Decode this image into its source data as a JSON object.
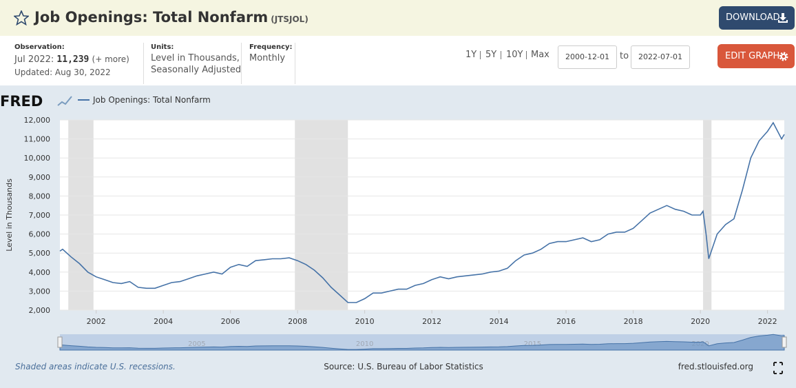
{
  "header": {
    "title": "Job Openings: Total Nonfarm",
    "series_id": "(JTSJOL)",
    "download": "DOWNLOAD"
  },
  "info": {
    "observation_label": "Observation:",
    "observation_date": "Jul 2022:",
    "observation_value": "11,239",
    "more": "(+ more)",
    "updated": "Updated: Aug 30, 2022",
    "units_label": "Units:",
    "units_lines": [
      "Level in Thousands,",
      "Seasonally Adjusted"
    ],
    "frequency_label": "Frequency:",
    "frequency": "Monthly"
  },
  "controls": {
    "ranges": [
      "1Y",
      "5Y",
      "10Y",
      "Max"
    ],
    "start_date": "2000-12-01",
    "to": "to",
    "end_date": "2022-07-01",
    "edit": "EDIT GRAPH"
  },
  "chart_data": {
    "type": "line",
    "logo": "FRED",
    "ylabel": "Level in Thousands",
    "x": [
      2000.92,
      2001.0,
      2001.25,
      2001.5,
      2001.75,
      2002.0,
      2002.25,
      2002.5,
      2002.75,
      2003.0,
      2003.25,
      2003.5,
      2003.75,
      2004.0,
      2004.25,
      2004.5,
      2004.75,
      2005.0,
      2005.25,
      2005.5,
      2005.75,
      2006.0,
      2006.25,
      2006.5,
      2006.75,
      2007.0,
      2007.25,
      2007.5,
      2007.75,
      2008.0,
      2008.25,
      2008.5,
      2008.75,
      2009.0,
      2009.25,
      2009.5,
      2009.75,
      2010.0,
      2010.25,
      2010.5,
      2010.75,
      2011.0,
      2011.25,
      2011.5,
      2011.75,
      2012.0,
      2012.25,
      2012.5,
      2012.75,
      2013.0,
      2013.25,
      2013.5,
      2013.75,
      2014.0,
      2014.25,
      2014.5,
      2014.75,
      2015.0,
      2015.25,
      2015.5,
      2015.75,
      2016.0,
      2016.25,
      2016.5,
      2016.75,
      2017.0,
      2017.25,
      2017.5,
      2017.75,
      2018.0,
      2018.25,
      2018.5,
      2018.75,
      2019.0,
      2019.25,
      2019.5,
      2019.75,
      2020.0,
      2020.08,
      2020.17,
      2020.25,
      2020.5,
      2020.75,
      2021.0,
      2021.25,
      2021.5,
      2021.75,
      2022.0,
      2022.17,
      2022.42,
      2022.5
    ],
    "series": [
      {
        "name": "Job Openings: Total Nonfarm",
        "color": "#4572a7",
        "values": [
          5100,
          5200,
          4800,
          4450,
          4000,
          3750,
          3600,
          3450,
          3400,
          3500,
          3200,
          3150,
          3150,
          3300,
          3450,
          3500,
          3650,
          3800,
          3900,
          4000,
          3900,
          4250,
          4400,
          4300,
          4600,
          4650,
          4700,
          4700,
          4750,
          4600,
          4400,
          4100,
          3700,
          3200,
          2800,
          2400,
          2400,
          2600,
          2900,
          2900,
          3000,
          3100,
          3100,
          3300,
          3400,
          3600,
          3750,
          3650,
          3750,
          3800,
          3850,
          3900,
          4000,
          4050,
          4200,
          4600,
          4900,
          5000,
          5200,
          5500,
          5600,
          5600,
          5700,
          5800,
          5600,
          5700,
          6000,
          6100,
          6100,
          6300,
          6700,
          7100,
          7300,
          7500,
          7300,
          7200,
          7000,
          7000,
          7200,
          6000,
          4700,
          6000,
          6500,
          6800,
          8300,
          10000,
          10900,
          11400,
          11850,
          11000,
          11239
        ]
      }
    ],
    "recessions": [
      [
        2001.17,
        2001.92
      ],
      [
        2007.92,
        2009.5
      ],
      [
        2020.08,
        2020.33
      ]
    ],
    "xlim": [
      2000.92,
      2022.5
    ],
    "xticks": [
      2002,
      2004,
      2006,
      2008,
      2010,
      2012,
      2014,
      2016,
      2018,
      2020,
      2022
    ],
    "ylim": [
      2000,
      12000
    ],
    "yticks": [
      {
        "value": 2000,
        "label": "2,000"
      },
      {
        "value": 3000,
        "label": "3,000"
      },
      {
        "value": 4000,
        "label": "4,000"
      },
      {
        "value": 5000,
        "label": "5,000"
      },
      {
        "value": 6000,
        "label": "6,000"
      },
      {
        "value": 7000,
        "label": "7,000"
      },
      {
        "value": 8000,
        "label": "8,000"
      },
      {
        "value": 9000,
        "label": "9,000"
      },
      {
        "value": 10000,
        "label": "10,000"
      },
      {
        "value": 11000,
        "label": "11,000"
      },
      {
        "value": 12000,
        "label": "12,000"
      }
    ],
    "grid": true,
    "navigator_xticks": [
      2005,
      2010,
      2015,
      2020
    ]
  },
  "footer": {
    "note": "Shaded areas indicate U.S. recessions.",
    "source": "Source: U.S. Bureau of Labor Statistics",
    "site": "fred.stlouisfed.org"
  }
}
